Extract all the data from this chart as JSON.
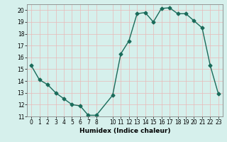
{
  "x": [
    0,
    1,
    2,
    3,
    4,
    5,
    6,
    7,
    8,
    10,
    11,
    12,
    13,
    14,
    15,
    16,
    17,
    18,
    19,
    20,
    21,
    22,
    23
  ],
  "y": [
    15.3,
    14.1,
    13.7,
    13.0,
    12.5,
    12.0,
    11.9,
    11.1,
    11.1,
    12.8,
    16.3,
    17.4,
    19.7,
    19.8,
    19.0,
    20.15,
    20.2,
    19.7,
    19.7,
    19.1,
    18.5,
    15.3,
    12.9
  ],
  "xlabel": "Humidex (Indice chaleur)",
  "xlim": [
    -0.5,
    23.5
  ],
  "ylim": [
    11,
    20.5
  ],
  "xticks": [
    0,
    1,
    2,
    3,
    4,
    5,
    6,
    7,
    8,
    10,
    11,
    12,
    13,
    14,
    15,
    16,
    17,
    18,
    19,
    20,
    21,
    22,
    23
  ],
  "yticks": [
    11,
    12,
    13,
    14,
    15,
    16,
    17,
    18,
    19,
    20
  ],
  "line_color": "#1a6b5a",
  "marker": "D",
  "marker_size": 2.5,
  "bg_color": "#d6f0ec",
  "grid_color": "#e8b8b8",
  "line_width": 1.0,
  "tick_fontsize": 5.5,
  "xlabel_fontsize": 6.5
}
